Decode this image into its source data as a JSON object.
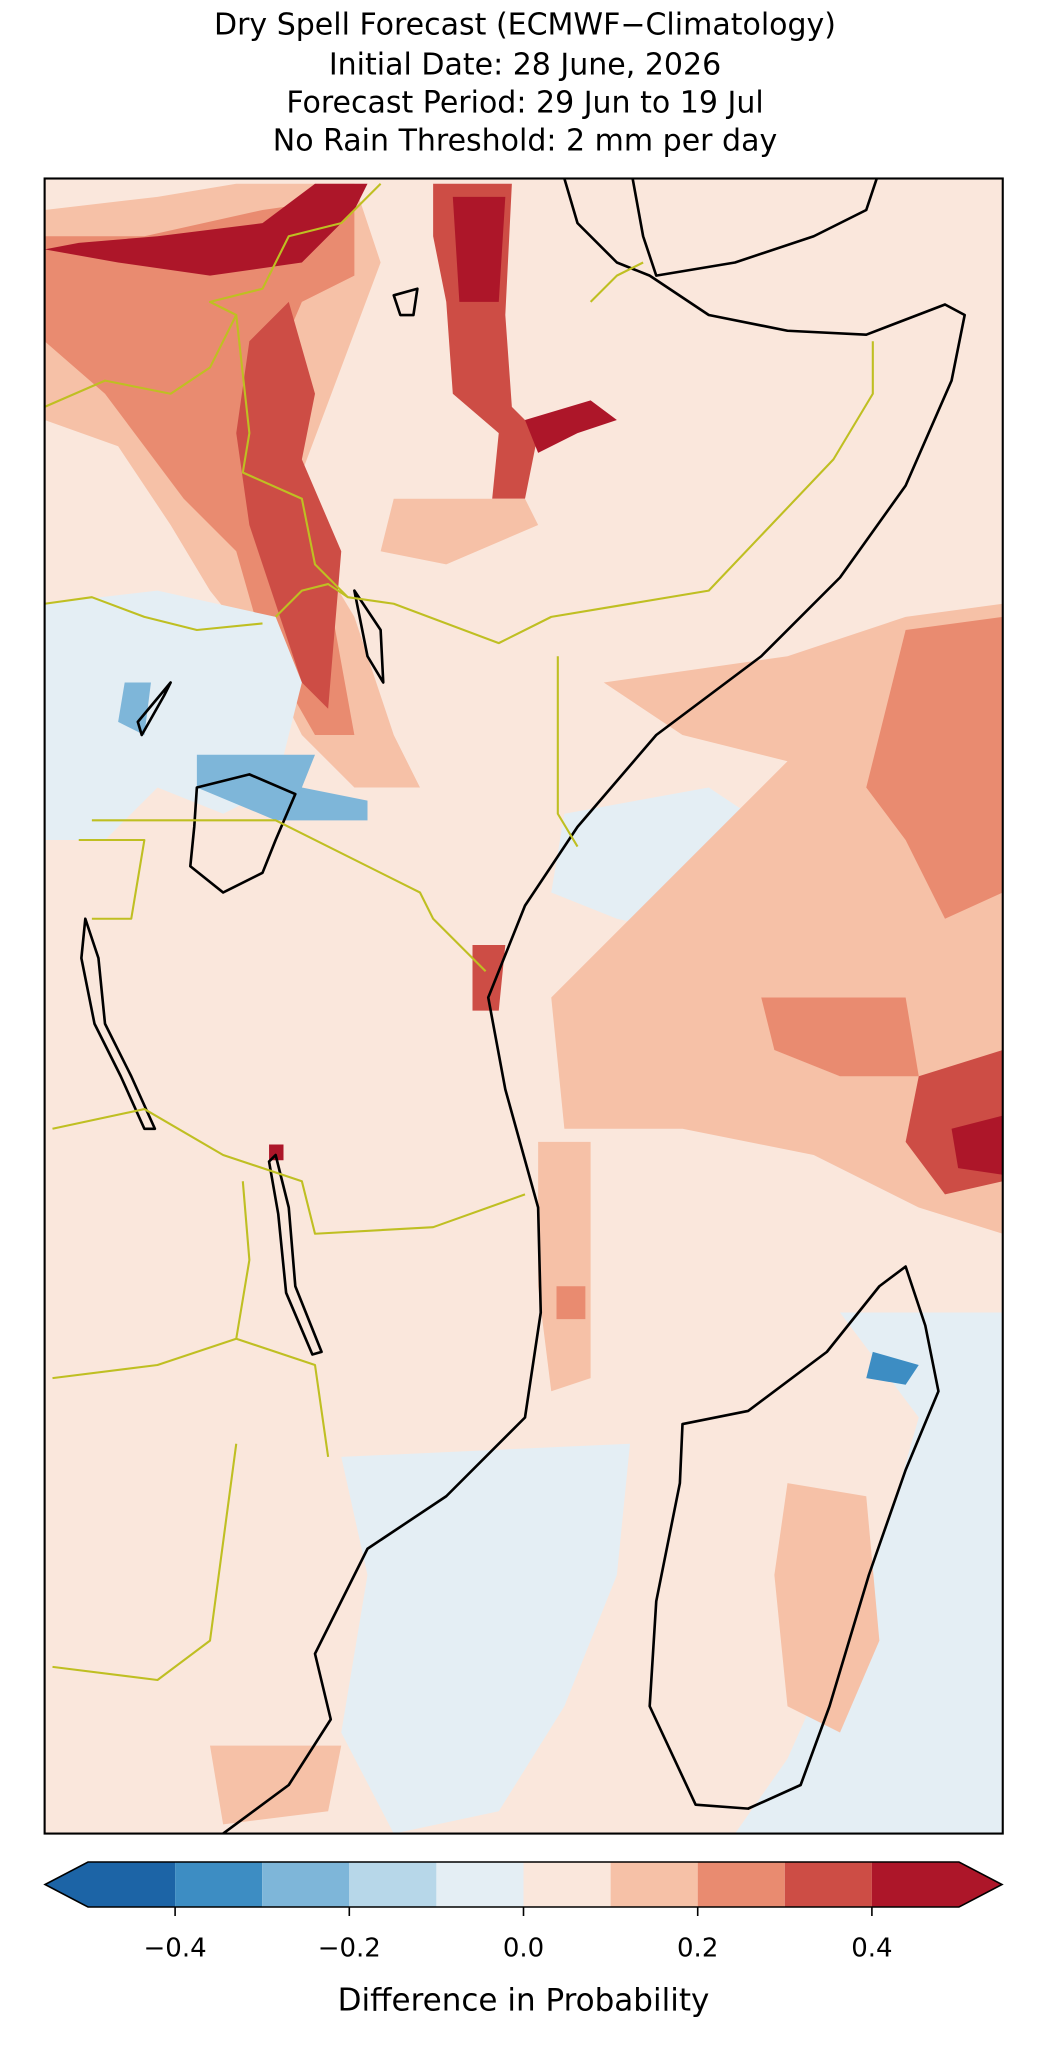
{
  "chart_data": {
    "type": "map",
    "title": [
      "Dry Spell Forecast (ECMWF−Climatology)",
      "Initial Date: 28 June, 2026",
      "Forecast Period: 29 Jun to 19 Jul",
      "No Rain Threshold: 2 mm per day"
    ],
    "colorbar": {
      "label": "Difference in Probability",
      "boundaries": [
        -0.5,
        -0.4,
        -0.3,
        -0.2,
        -0.1,
        0,
        0.1,
        0.2,
        0.3,
        0.4,
        0.5
      ],
      "colors": [
        "#1c64a6",
        "#3d8dc3",
        "#7eb6d9",
        "#b7d7e9",
        "#e4eef4",
        "#fae7dc",
        "#f6c1a7",
        "#e98b70",
        "#cd4d45",
        "#ad1629"
      ],
      "extend": "both",
      "xlim": [
        -0.5,
        0.5
      ],
      "xticks": [
        {
          "value": -0.4,
          "label": "−0.4"
        },
        {
          "value": -0.2,
          "label": "−0.2"
        },
        {
          "value": 0,
          "label": "0.0"
        },
        0.2,
        0.4
      ]
    }
  }
}
